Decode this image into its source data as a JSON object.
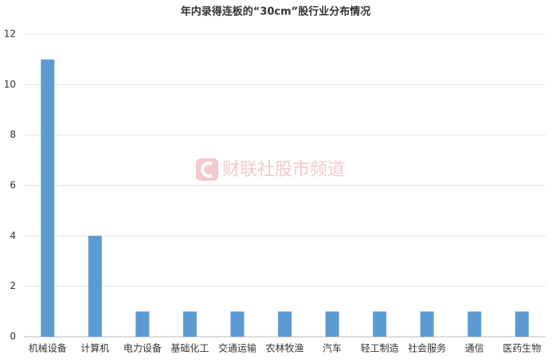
{
  "chart_data": {
    "type": "bar",
    "title": "年内录得连板的“30cm”股行业分布情况",
    "watermark": "财联社股市频道",
    "categories": [
      "机械设备",
      "计算机",
      "电力设备",
      "基础化工",
      "交通运输",
      "农林牧渔",
      "汽车",
      "轻工制造",
      "社会服务",
      "通信",
      "医药生物"
    ],
    "values": [
      11,
      4,
      1,
      1,
      1,
      1,
      1,
      1,
      1,
      1,
      1
    ],
    "color": "#5b9bd5",
    "ylim": [
      0,
      12
    ],
    "yticks": [
      0,
      2,
      4,
      6,
      8,
      10,
      12
    ],
    "grid": true
  }
}
